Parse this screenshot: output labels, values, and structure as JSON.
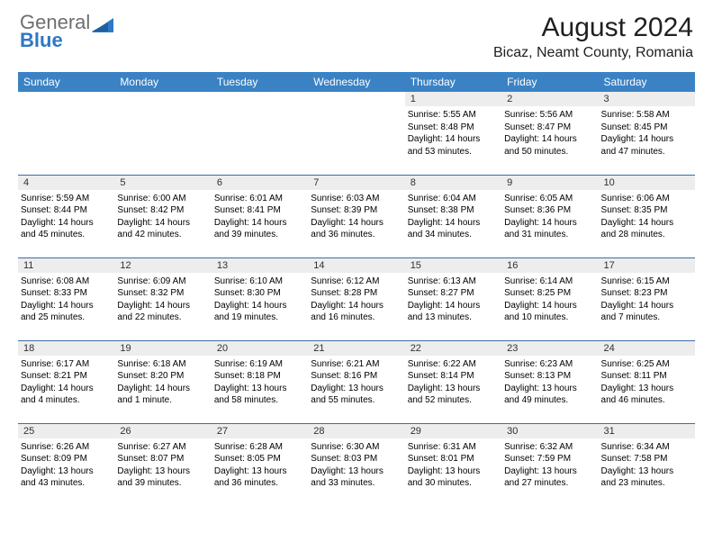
{
  "logo": {
    "general": "General",
    "blue": "Blue"
  },
  "title": "August 2024",
  "location": "Bicaz, Neamt County, Romania",
  "colors": {
    "header_bg": "#3a82c4",
    "header_text": "#ffffff",
    "daynum_bg": "#ededed",
    "row_border": "#3a6ea5",
    "logo_gray": "#6e6e6e",
    "logo_blue": "#2f78c3",
    "page_bg": "#ffffff",
    "text": "#000000"
  },
  "calendar": {
    "weekdays": [
      "Sunday",
      "Monday",
      "Tuesday",
      "Wednesday",
      "Thursday",
      "Friday",
      "Saturday"
    ],
    "font_size_header": 12,
    "font_size_daynum": 11,
    "font_size_body": 10,
    "weeks": [
      [
        {
          "day": "",
          "sunrise": "",
          "sunset": "",
          "daylight": ""
        },
        {
          "day": "",
          "sunrise": "",
          "sunset": "",
          "daylight": ""
        },
        {
          "day": "",
          "sunrise": "",
          "sunset": "",
          "daylight": ""
        },
        {
          "day": "",
          "sunrise": "",
          "sunset": "",
          "daylight": ""
        },
        {
          "day": "1",
          "sunrise": "Sunrise: 5:55 AM",
          "sunset": "Sunset: 8:48 PM",
          "daylight": "Daylight: 14 hours and 53 minutes."
        },
        {
          "day": "2",
          "sunrise": "Sunrise: 5:56 AM",
          "sunset": "Sunset: 8:47 PM",
          "daylight": "Daylight: 14 hours and 50 minutes."
        },
        {
          "day": "3",
          "sunrise": "Sunrise: 5:58 AM",
          "sunset": "Sunset: 8:45 PM",
          "daylight": "Daylight: 14 hours and 47 minutes."
        }
      ],
      [
        {
          "day": "4",
          "sunrise": "Sunrise: 5:59 AM",
          "sunset": "Sunset: 8:44 PM",
          "daylight": "Daylight: 14 hours and 45 minutes."
        },
        {
          "day": "5",
          "sunrise": "Sunrise: 6:00 AM",
          "sunset": "Sunset: 8:42 PM",
          "daylight": "Daylight: 14 hours and 42 minutes."
        },
        {
          "day": "6",
          "sunrise": "Sunrise: 6:01 AM",
          "sunset": "Sunset: 8:41 PM",
          "daylight": "Daylight: 14 hours and 39 minutes."
        },
        {
          "day": "7",
          "sunrise": "Sunrise: 6:03 AM",
          "sunset": "Sunset: 8:39 PM",
          "daylight": "Daylight: 14 hours and 36 minutes."
        },
        {
          "day": "8",
          "sunrise": "Sunrise: 6:04 AM",
          "sunset": "Sunset: 8:38 PM",
          "daylight": "Daylight: 14 hours and 34 minutes."
        },
        {
          "day": "9",
          "sunrise": "Sunrise: 6:05 AM",
          "sunset": "Sunset: 8:36 PM",
          "daylight": "Daylight: 14 hours and 31 minutes."
        },
        {
          "day": "10",
          "sunrise": "Sunrise: 6:06 AM",
          "sunset": "Sunset: 8:35 PM",
          "daylight": "Daylight: 14 hours and 28 minutes."
        }
      ],
      [
        {
          "day": "11",
          "sunrise": "Sunrise: 6:08 AM",
          "sunset": "Sunset: 8:33 PM",
          "daylight": "Daylight: 14 hours and 25 minutes."
        },
        {
          "day": "12",
          "sunrise": "Sunrise: 6:09 AM",
          "sunset": "Sunset: 8:32 PM",
          "daylight": "Daylight: 14 hours and 22 minutes."
        },
        {
          "day": "13",
          "sunrise": "Sunrise: 6:10 AM",
          "sunset": "Sunset: 8:30 PM",
          "daylight": "Daylight: 14 hours and 19 minutes."
        },
        {
          "day": "14",
          "sunrise": "Sunrise: 6:12 AM",
          "sunset": "Sunset: 8:28 PM",
          "daylight": "Daylight: 14 hours and 16 minutes."
        },
        {
          "day": "15",
          "sunrise": "Sunrise: 6:13 AM",
          "sunset": "Sunset: 8:27 PM",
          "daylight": "Daylight: 14 hours and 13 minutes."
        },
        {
          "day": "16",
          "sunrise": "Sunrise: 6:14 AM",
          "sunset": "Sunset: 8:25 PM",
          "daylight": "Daylight: 14 hours and 10 minutes."
        },
        {
          "day": "17",
          "sunrise": "Sunrise: 6:15 AM",
          "sunset": "Sunset: 8:23 PM",
          "daylight": "Daylight: 14 hours and 7 minutes."
        }
      ],
      [
        {
          "day": "18",
          "sunrise": "Sunrise: 6:17 AM",
          "sunset": "Sunset: 8:21 PM",
          "daylight": "Daylight: 14 hours and 4 minutes."
        },
        {
          "day": "19",
          "sunrise": "Sunrise: 6:18 AM",
          "sunset": "Sunset: 8:20 PM",
          "daylight": "Daylight: 14 hours and 1 minute."
        },
        {
          "day": "20",
          "sunrise": "Sunrise: 6:19 AM",
          "sunset": "Sunset: 8:18 PM",
          "daylight": "Daylight: 13 hours and 58 minutes."
        },
        {
          "day": "21",
          "sunrise": "Sunrise: 6:21 AM",
          "sunset": "Sunset: 8:16 PM",
          "daylight": "Daylight: 13 hours and 55 minutes."
        },
        {
          "day": "22",
          "sunrise": "Sunrise: 6:22 AM",
          "sunset": "Sunset: 8:14 PM",
          "daylight": "Daylight: 13 hours and 52 minutes."
        },
        {
          "day": "23",
          "sunrise": "Sunrise: 6:23 AM",
          "sunset": "Sunset: 8:13 PM",
          "daylight": "Daylight: 13 hours and 49 minutes."
        },
        {
          "day": "24",
          "sunrise": "Sunrise: 6:25 AM",
          "sunset": "Sunset: 8:11 PM",
          "daylight": "Daylight: 13 hours and 46 minutes."
        }
      ],
      [
        {
          "day": "25",
          "sunrise": "Sunrise: 6:26 AM",
          "sunset": "Sunset: 8:09 PM",
          "daylight": "Daylight: 13 hours and 43 minutes."
        },
        {
          "day": "26",
          "sunrise": "Sunrise: 6:27 AM",
          "sunset": "Sunset: 8:07 PM",
          "daylight": "Daylight: 13 hours and 39 minutes."
        },
        {
          "day": "27",
          "sunrise": "Sunrise: 6:28 AM",
          "sunset": "Sunset: 8:05 PM",
          "daylight": "Daylight: 13 hours and 36 minutes."
        },
        {
          "day": "28",
          "sunrise": "Sunrise: 6:30 AM",
          "sunset": "Sunset: 8:03 PM",
          "daylight": "Daylight: 13 hours and 33 minutes."
        },
        {
          "day": "29",
          "sunrise": "Sunrise: 6:31 AM",
          "sunset": "Sunset: 8:01 PM",
          "daylight": "Daylight: 13 hours and 30 minutes."
        },
        {
          "day": "30",
          "sunrise": "Sunrise: 6:32 AM",
          "sunset": "Sunset: 7:59 PM",
          "daylight": "Daylight: 13 hours and 27 minutes."
        },
        {
          "day": "31",
          "sunrise": "Sunrise: 6:34 AM",
          "sunset": "Sunset: 7:58 PM",
          "daylight": "Daylight: 13 hours and 23 minutes."
        }
      ]
    ]
  }
}
